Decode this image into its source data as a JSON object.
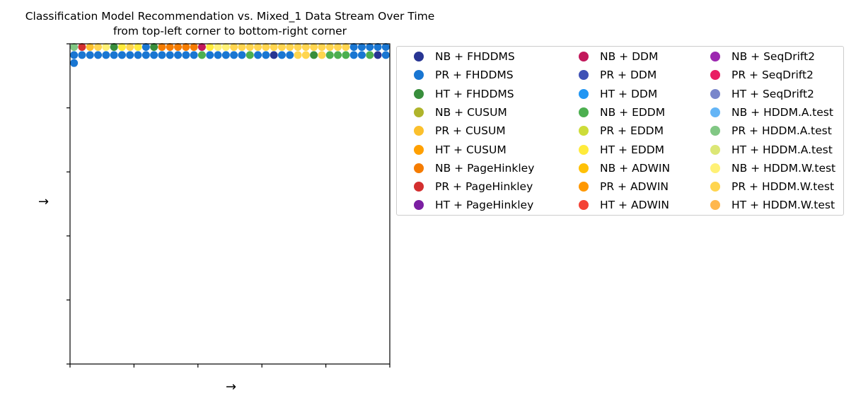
{
  "chart_data": {
    "type": "scatter",
    "title": "Classification Model Recommendation vs. Mixed_1 Data Stream Over Time",
    "subtitle": "from top-left corner to bottom-right corner",
    "xlabel": "→",
    "ylabel": "→",
    "xlim": [
      0,
      40
    ],
    "ylim": [
      40,
      0
    ],
    "y_inverted": true,
    "grid": false,
    "xticklabels": false,
    "yticklabels": false,
    "legend_placement": "outside-right",
    "legend": [
      {
        "label": "NB + FHDDMS",
        "color": "#283593"
      },
      {
        "label": "PR + FHDDMS",
        "color": "#1976d2"
      },
      {
        "label": "HT + FHDDMS",
        "color": "#388e3c"
      },
      {
        "label": "NB + CUSUM",
        "color": "#afb42b"
      },
      {
        "label": "PR + CUSUM",
        "color": "#fbc02d"
      },
      {
        "label": "HT + CUSUM",
        "color": "#ffa000"
      },
      {
        "label": "NB + PageHinkley",
        "color": "#f57c00"
      },
      {
        "label": "PR + PageHinkley",
        "color": "#d32f2f"
      },
      {
        "label": "HT + PageHinkley",
        "color": "#7b1fa2"
      },
      {
        "label": "NB + DDM",
        "color": "#c2185b"
      },
      {
        "label": "PR + DDM",
        "color": "#3f51b5"
      },
      {
        "label": "HT + DDM",
        "color": "#2196f3"
      },
      {
        "label": "NB + EDDM",
        "color": "#4caf50"
      },
      {
        "label": "PR + EDDM",
        "color": "#cddc39"
      },
      {
        "label": "HT + EDDM",
        "color": "#ffeb3b"
      },
      {
        "label": "NB + ADWIN",
        "color": "#ffc107"
      },
      {
        "label": "PR + ADWIN",
        "color": "#ff9800"
      },
      {
        "label": "HT + ADWIN",
        "color": "#f44336"
      },
      {
        "label": "NB + SeqDrift2",
        "color": "#9c27b0"
      },
      {
        "label": "PR + SeqDrift2",
        "color": "#e91e63"
      },
      {
        "label": "HT + SeqDrift2",
        "color": "#7986cb"
      },
      {
        "label": "NB + HDDM.A.test",
        "color": "#64b5f6"
      },
      {
        "label": "PR + HDDM.A.test",
        "color": "#81c784"
      },
      {
        "label": "HT + HDDM.A.test",
        "color": "#dce775"
      },
      {
        "label": "NB + HDDM.W.test",
        "color": "#fff176"
      },
      {
        "label": "PR + HDDM.W.test",
        "color": "#ffd54f"
      },
      {
        "label": "HT + HDDM.W.test",
        "color": "#ffb74d"
      }
    ],
    "points": [
      {
        "x": 0.5,
        "y": 0.4,
        "label": "PR + HDDM.A.test"
      },
      {
        "x": 1.5,
        "y": 0.4,
        "label": "PR + PageHinkley"
      },
      {
        "x": 2.5,
        "y": 0.4,
        "label": "PR + CUSUM"
      },
      {
        "x": 3.5,
        "y": 0.4,
        "label": "PR + HDDM.W.test"
      },
      {
        "x": 4.5,
        "y": 0.4,
        "label": "NB + HDDM.W.test"
      },
      {
        "x": 5.5,
        "y": 0.4,
        "label": "HT + FHDDMS"
      },
      {
        "x": 6.5,
        "y": 0.4,
        "label": "HT + EDDM"
      },
      {
        "x": 7.5,
        "y": 0.4,
        "label": "PR + HDDM.W.test"
      },
      {
        "x": 8.5,
        "y": 0.4,
        "label": "HT + EDDM"
      },
      {
        "x": 9.5,
        "y": 0.4,
        "label": "PR + FHDDMS"
      },
      {
        "x": 10.5,
        "y": 0.4,
        "label": "HT + FHDDMS"
      },
      {
        "x": 11.5,
        "y": 0.4,
        "label": "NB + PageHinkley"
      },
      {
        "x": 12.5,
        "y": 0.4,
        "label": "NB + PageHinkley"
      },
      {
        "x": 13.5,
        "y": 0.4,
        "label": "NB + PageHinkley"
      },
      {
        "x": 14.5,
        "y": 0.4,
        "label": "NB + PageHinkley"
      },
      {
        "x": 15.5,
        "y": 0.4,
        "label": "NB + PageHinkley"
      },
      {
        "x": 16.5,
        "y": 0.4,
        "label": "NB + DDM"
      },
      {
        "x": 17.5,
        "y": 0.4,
        "label": "HT + EDDM"
      },
      {
        "x": 18.5,
        "y": 0.4,
        "label": "NB + HDDM.W.test"
      },
      {
        "x": 19.5,
        "y": 0.4,
        "label": "NB + HDDM.W.test"
      },
      {
        "x": 20.5,
        "y": 0.4,
        "label": "PR + HDDM.W.test"
      },
      {
        "x": 21.5,
        "y": 0.4,
        "label": "PR + HDDM.W.test"
      },
      {
        "x": 22.5,
        "y": 0.4,
        "label": "PR + HDDM.W.test"
      },
      {
        "x": 23.5,
        "y": 0.4,
        "label": "PR + HDDM.W.test"
      },
      {
        "x": 24.5,
        "y": 0.4,
        "label": "PR + HDDM.W.test"
      },
      {
        "x": 25.5,
        "y": 0.4,
        "label": "PR + HDDM.W.test"
      },
      {
        "x": 26.5,
        "y": 0.4,
        "label": "PR + HDDM.W.test"
      },
      {
        "x": 27.5,
        "y": 0.4,
        "label": "PR + HDDM.W.test"
      },
      {
        "x": 28.5,
        "y": 0.4,
        "label": "PR + HDDM.W.test"
      },
      {
        "x": 29.5,
        "y": 0.4,
        "label": "PR + HDDM.W.test"
      },
      {
        "x": 30.5,
        "y": 0.4,
        "label": "PR + HDDM.W.test"
      },
      {
        "x": 31.5,
        "y": 0.4,
        "label": "PR + HDDM.W.test"
      },
      {
        "x": 32.5,
        "y": 0.4,
        "label": "PR + HDDM.W.test"
      },
      {
        "x": 33.5,
        "y": 0.4,
        "label": "PR + HDDM.W.test"
      },
      {
        "x": 34.5,
        "y": 0.4,
        "label": "PR + HDDM.W.test"
      },
      {
        "x": 35.5,
        "y": 0.4,
        "label": "PR + FHDDMS"
      },
      {
        "x": 36.5,
        "y": 0.4,
        "label": "PR + FHDDMS"
      },
      {
        "x": 37.5,
        "y": 0.4,
        "label": "PR + FHDDMS"
      },
      {
        "x": 38.5,
        "y": 0.4,
        "label": "PR + FHDDMS"
      },
      {
        "x": 39.5,
        "y": 0.4,
        "label": "PR + FHDDMS"
      },
      {
        "x": 0.5,
        "y": 1.4,
        "label": "PR + FHDDMS"
      },
      {
        "x": 1.5,
        "y": 1.4,
        "label": "PR + FHDDMS"
      },
      {
        "x": 2.5,
        "y": 1.4,
        "label": "PR + FHDDMS"
      },
      {
        "x": 3.5,
        "y": 1.4,
        "label": "PR + FHDDMS"
      },
      {
        "x": 4.5,
        "y": 1.4,
        "label": "PR + FHDDMS"
      },
      {
        "x": 5.5,
        "y": 1.4,
        "label": "PR + FHDDMS"
      },
      {
        "x": 6.5,
        "y": 1.4,
        "label": "PR + FHDDMS"
      },
      {
        "x": 7.5,
        "y": 1.4,
        "label": "PR + FHDDMS"
      },
      {
        "x": 8.5,
        "y": 1.4,
        "label": "PR + FHDDMS"
      },
      {
        "x": 9.5,
        "y": 1.4,
        "label": "PR + FHDDMS"
      },
      {
        "x": 10.5,
        "y": 1.4,
        "label": "PR + FHDDMS"
      },
      {
        "x": 11.5,
        "y": 1.4,
        "label": "PR + FHDDMS"
      },
      {
        "x": 12.5,
        "y": 1.4,
        "label": "PR + FHDDMS"
      },
      {
        "x": 13.5,
        "y": 1.4,
        "label": "PR + FHDDMS"
      },
      {
        "x": 14.5,
        "y": 1.4,
        "label": "PR + FHDDMS"
      },
      {
        "x": 15.5,
        "y": 1.4,
        "label": "PR + FHDDMS"
      },
      {
        "x": 16.5,
        "y": 1.4,
        "label": "NB + EDDM"
      },
      {
        "x": 17.5,
        "y": 1.4,
        "label": "PR + FHDDMS"
      },
      {
        "x": 18.5,
        "y": 1.4,
        "label": "PR + FHDDMS"
      },
      {
        "x": 19.5,
        "y": 1.4,
        "label": "PR + FHDDMS"
      },
      {
        "x": 20.5,
        "y": 1.4,
        "label": "PR + FHDDMS"
      },
      {
        "x": 21.5,
        "y": 1.4,
        "label": "PR + FHDDMS"
      },
      {
        "x": 22.5,
        "y": 1.4,
        "label": "NB + EDDM"
      },
      {
        "x": 23.5,
        "y": 1.4,
        "label": "PR + FHDDMS"
      },
      {
        "x": 24.5,
        "y": 1.4,
        "label": "PR + FHDDMS"
      },
      {
        "x": 25.5,
        "y": 1.4,
        "label": "NB + FHDDMS"
      },
      {
        "x": 26.5,
        "y": 1.4,
        "label": "PR + FHDDMS"
      },
      {
        "x": 27.5,
        "y": 1.4,
        "label": "PR + FHDDMS"
      },
      {
        "x": 28.5,
        "y": 1.4,
        "label": "PR + HDDM.W.test"
      },
      {
        "x": 29.5,
        "y": 1.4,
        "label": "PR + HDDM.W.test"
      },
      {
        "x": 30.5,
        "y": 1.4,
        "label": "HT + FHDDMS"
      },
      {
        "x": 31.5,
        "y": 1.4,
        "label": "PR + HDDM.W.test"
      },
      {
        "x": 32.5,
        "y": 1.4,
        "label": "NB + EDDM"
      },
      {
        "x": 33.5,
        "y": 1.4,
        "label": "NB + EDDM"
      },
      {
        "x": 34.5,
        "y": 1.4,
        "label": "NB + EDDM"
      },
      {
        "x": 35.5,
        "y": 1.4,
        "label": "PR + FHDDMS"
      },
      {
        "x": 36.5,
        "y": 1.4,
        "label": "PR + FHDDMS"
      },
      {
        "x": 37.5,
        "y": 1.4,
        "label": "NB + EDDM"
      },
      {
        "x": 38.5,
        "y": 1.4,
        "label": "NB + FHDDMS"
      },
      {
        "x": 39.5,
        "y": 1.4,
        "label": "PR + FHDDMS"
      },
      {
        "x": 0.5,
        "y": 2.4,
        "label": "PR + FHDDMS"
      }
    ]
  }
}
